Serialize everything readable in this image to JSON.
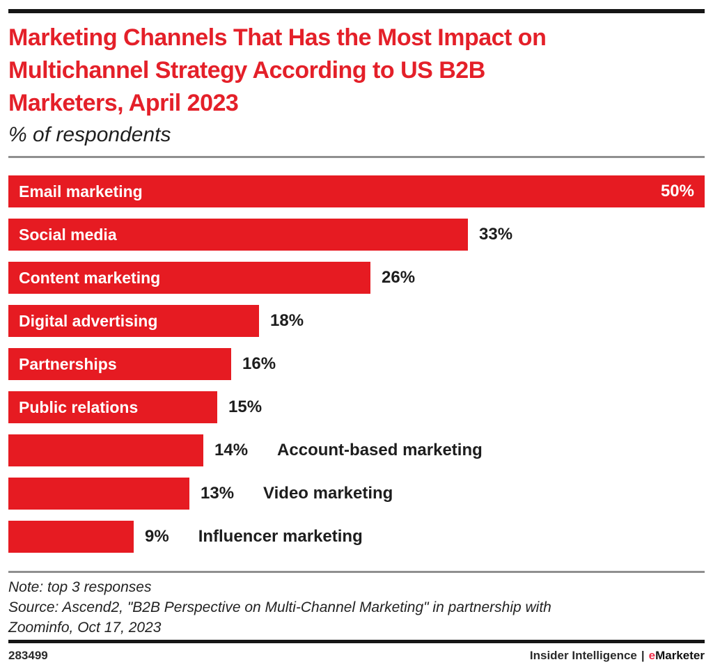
{
  "header": {
    "title_lines": [
      "Marketing Channels That Has the Most Impact on",
      "Multichannel Strategy According to US B2B",
      "Marketers, April 2023"
    ],
    "subtitle": "% of respondents"
  },
  "chart_data": {
    "type": "bar",
    "orientation": "horizontal",
    "title": "Marketing Channels That Has the Most Impact on Multichannel Strategy According to US B2B Marketers, April 2023",
    "subtitle": "% of respondents",
    "unit": "%",
    "xlim": [
      0,
      50
    ],
    "grid": false,
    "legend": "none",
    "bar_color": "#e61b22",
    "categories": [
      "Email marketing",
      "Social media",
      "Content marketing",
      "Digital advertising",
      "Partnerships",
      "Public relations",
      "Account-based marketing",
      "Video marketing",
      "Influencer marketing"
    ],
    "values": [
      50,
      33,
      26,
      18,
      16,
      15,
      14,
      13,
      9
    ],
    "rows": [
      {
        "slug": "email-marketing",
        "label": "Email marketing",
        "value": 50,
        "value_label": "50%",
        "label_position": "inside",
        "value_position": "inside"
      },
      {
        "slug": "social-media",
        "label": "Social media",
        "value": 33,
        "value_label": "33%",
        "label_position": "inside",
        "value_position": "outside"
      },
      {
        "slug": "content-marketing",
        "label": "Content marketing",
        "value": 26,
        "value_label": "26%",
        "label_position": "inside",
        "value_position": "outside"
      },
      {
        "slug": "digital-advertising",
        "label": "Digital advertising",
        "value": 18,
        "value_label": "18%",
        "label_position": "inside",
        "value_position": "outside"
      },
      {
        "slug": "partnerships",
        "label": "Partnerships",
        "value": 16,
        "value_label": "16%",
        "label_position": "inside",
        "value_position": "outside"
      },
      {
        "slug": "public-relations",
        "label": "Public relations",
        "value": 15,
        "value_label": "15%",
        "label_position": "inside",
        "value_position": "outside"
      },
      {
        "slug": "account-based-marketing",
        "label": "Account-based marketing",
        "value": 14,
        "value_label": "14%",
        "label_position": "outside",
        "value_position": "outside"
      },
      {
        "slug": "video-marketing",
        "label": "Video marketing",
        "value": 13,
        "value_label": "13%",
        "label_position": "outside",
        "value_position": "outside"
      },
      {
        "slug": "influencer-marketing",
        "label": "Influencer marketing",
        "value": 9,
        "value_label": "9%",
        "label_position": "outside",
        "value_position": "outside"
      }
    ]
  },
  "footnotes": {
    "note": "Note: top 3 responses",
    "source_lines": [
      "Source: Ascend2, \"B2B Perspective on Multi-Channel Marketing\" in partnership with",
      "Zoominfo, Oct 17, 2023"
    ]
  },
  "footer": {
    "chart_id": "283499",
    "brand_left": "Insider Intelligence",
    "separator": "|",
    "brand_e": "e",
    "brand_rest": "Marketer"
  }
}
